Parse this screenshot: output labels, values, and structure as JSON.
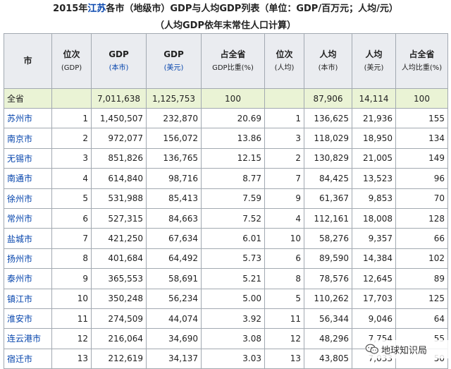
{
  "caption": {
    "line1_pre": "2015年",
    "line1_link": "江苏",
    "line1_post": "各市（地级市）GDP与人均GDP列表（单位：GDP/百万元；人均/元）",
    "line2": "（人均GDP依年末常住人口计算）"
  },
  "headers": [
    {
      "main": "市",
      "sub": "",
      "sub_link": false
    },
    {
      "main": "位次",
      "sub": "(GDP)",
      "sub_link": false
    },
    {
      "main": "GDP",
      "sub": "(本市)",
      "sub_link": true
    },
    {
      "main": "GDP",
      "sub": "(美元)",
      "sub_link": true
    },
    {
      "main": "占全省",
      "sub": "GDP比重(%)",
      "sub_link": false
    },
    {
      "main": "位次",
      "sub": "(人均)",
      "sub_link": false
    },
    {
      "main": "人均",
      "sub": "(本市)",
      "sub_link": false
    },
    {
      "main": "人均",
      "sub": "(美元)",
      "sub_link": false
    },
    {
      "main": "占全省",
      "sub": "人均比重(%)",
      "sub_link": false
    }
  ],
  "total": [
    "全省",
    "",
    "7,011,638",
    "1,125,753",
    "100",
    "",
    "87,906",
    "14,114",
    "100"
  ],
  "rows": [
    [
      "苏州市",
      "1",
      "1,450,507",
      "232,870",
      "20.69",
      "1",
      "136,625",
      "21,936",
      "155"
    ],
    [
      "南京市",
      "2",
      "972,077",
      "156,072",
      "13.86",
      "3",
      "118,029",
      "18,950",
      "134"
    ],
    [
      "无锡市",
      "3",
      "851,826",
      "136,765",
      "12.15",
      "2",
      "130,829",
      "21,005",
      "149"
    ],
    [
      "南通市",
      "4",
      "614,840",
      "98,716",
      "8.77",
      "7",
      "84,425",
      "13,523",
      "96"
    ],
    [
      "徐州市",
      "5",
      "531,988",
      "85,413",
      "7.59",
      "9",
      "61,367",
      "9,853",
      "70"
    ],
    [
      "常州市",
      "6",
      "527,315",
      "84,663",
      "7.52",
      "4",
      "112,161",
      "18,008",
      "128"
    ],
    [
      "盐城市",
      "7",
      "421,250",
      "67,634",
      "6.01",
      "10",
      "58,276",
      "9,357",
      "66"
    ],
    [
      "扬州市",
      "8",
      "401,684",
      "64,492",
      "5.73",
      "6",
      "89,590",
      "14,384",
      "102"
    ],
    [
      "泰州市",
      "9",
      "365,553",
      "58,691",
      "5.21",
      "8",
      "78,576",
      "12,645",
      "89"
    ],
    [
      "镇江市",
      "10",
      "350,248",
      "56,234",
      "5.00",
      "5",
      "110,262",
      "17,703",
      "125"
    ],
    [
      "淮安市",
      "11",
      "274,509",
      "44,074",
      "3.92",
      "11",
      "56,344",
      "9,046",
      "64"
    ],
    [
      "连云港市",
      "12",
      "216,064",
      "34,690",
      "3.08",
      "12",
      "48,296",
      "7,754",
      "55"
    ],
    [
      "宿迁市",
      "13",
      "212,619",
      "34,137",
      "3.03",
      "13",
      "43,805",
      "7,033",
      "50"
    ]
  ],
  "watermark": {
    "text": "地球知识局",
    "icon": "wechat-icon"
  }
}
